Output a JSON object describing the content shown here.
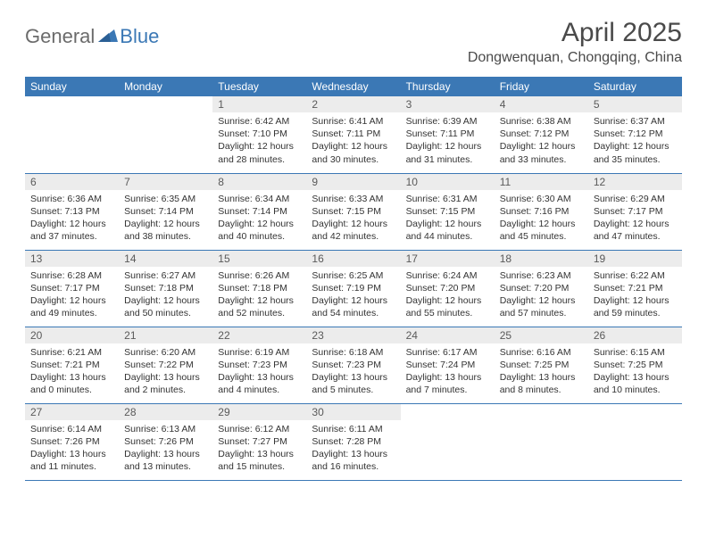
{
  "logo": {
    "general": "General",
    "blue": "Blue"
  },
  "title": "April 2025",
  "location": "Dongwenquan, Chongqing, China",
  "colors": {
    "header_bg": "#3b78b5",
    "header_text": "#ffffff",
    "daynum_bg": "#ececec",
    "daynum_text": "#5a5a5a",
    "text": "#333333",
    "logo_gray": "#6b6b6b",
    "logo_blue": "#3b78b5",
    "cell_border": "#3b78b5"
  },
  "dayNames": [
    "Sunday",
    "Monday",
    "Tuesday",
    "Wednesday",
    "Thursday",
    "Friday",
    "Saturday"
  ],
  "weeks": [
    [
      null,
      null,
      {
        "n": "1",
        "sr": "6:42 AM",
        "ss": "7:10 PM",
        "dl": "12 hours and 28 minutes."
      },
      {
        "n": "2",
        "sr": "6:41 AM",
        "ss": "7:11 PM",
        "dl": "12 hours and 30 minutes."
      },
      {
        "n": "3",
        "sr": "6:39 AM",
        "ss": "7:11 PM",
        "dl": "12 hours and 31 minutes."
      },
      {
        "n": "4",
        "sr": "6:38 AM",
        "ss": "7:12 PM",
        "dl": "12 hours and 33 minutes."
      },
      {
        "n": "5",
        "sr": "6:37 AM",
        "ss": "7:12 PM",
        "dl": "12 hours and 35 minutes."
      }
    ],
    [
      {
        "n": "6",
        "sr": "6:36 AM",
        "ss": "7:13 PM",
        "dl": "12 hours and 37 minutes."
      },
      {
        "n": "7",
        "sr": "6:35 AM",
        "ss": "7:14 PM",
        "dl": "12 hours and 38 minutes."
      },
      {
        "n": "8",
        "sr": "6:34 AM",
        "ss": "7:14 PM",
        "dl": "12 hours and 40 minutes."
      },
      {
        "n": "9",
        "sr": "6:33 AM",
        "ss": "7:15 PM",
        "dl": "12 hours and 42 minutes."
      },
      {
        "n": "10",
        "sr": "6:31 AM",
        "ss": "7:15 PM",
        "dl": "12 hours and 44 minutes."
      },
      {
        "n": "11",
        "sr": "6:30 AM",
        "ss": "7:16 PM",
        "dl": "12 hours and 45 minutes."
      },
      {
        "n": "12",
        "sr": "6:29 AM",
        "ss": "7:17 PM",
        "dl": "12 hours and 47 minutes."
      }
    ],
    [
      {
        "n": "13",
        "sr": "6:28 AM",
        "ss": "7:17 PM",
        "dl": "12 hours and 49 minutes."
      },
      {
        "n": "14",
        "sr": "6:27 AM",
        "ss": "7:18 PM",
        "dl": "12 hours and 50 minutes."
      },
      {
        "n": "15",
        "sr": "6:26 AM",
        "ss": "7:18 PM",
        "dl": "12 hours and 52 minutes."
      },
      {
        "n": "16",
        "sr": "6:25 AM",
        "ss": "7:19 PM",
        "dl": "12 hours and 54 minutes."
      },
      {
        "n": "17",
        "sr": "6:24 AM",
        "ss": "7:20 PM",
        "dl": "12 hours and 55 minutes."
      },
      {
        "n": "18",
        "sr": "6:23 AM",
        "ss": "7:20 PM",
        "dl": "12 hours and 57 minutes."
      },
      {
        "n": "19",
        "sr": "6:22 AM",
        "ss": "7:21 PM",
        "dl": "12 hours and 59 minutes."
      }
    ],
    [
      {
        "n": "20",
        "sr": "6:21 AM",
        "ss": "7:21 PM",
        "dl": "13 hours and 0 minutes."
      },
      {
        "n": "21",
        "sr": "6:20 AM",
        "ss": "7:22 PM",
        "dl": "13 hours and 2 minutes."
      },
      {
        "n": "22",
        "sr": "6:19 AM",
        "ss": "7:23 PM",
        "dl": "13 hours and 4 minutes."
      },
      {
        "n": "23",
        "sr": "6:18 AM",
        "ss": "7:23 PM",
        "dl": "13 hours and 5 minutes."
      },
      {
        "n": "24",
        "sr": "6:17 AM",
        "ss": "7:24 PM",
        "dl": "13 hours and 7 minutes."
      },
      {
        "n": "25",
        "sr": "6:16 AM",
        "ss": "7:25 PM",
        "dl": "13 hours and 8 minutes."
      },
      {
        "n": "26",
        "sr": "6:15 AM",
        "ss": "7:25 PM",
        "dl": "13 hours and 10 minutes."
      }
    ],
    [
      {
        "n": "27",
        "sr": "6:14 AM",
        "ss": "7:26 PM",
        "dl": "13 hours and 11 minutes."
      },
      {
        "n": "28",
        "sr": "6:13 AM",
        "ss": "7:26 PM",
        "dl": "13 hours and 13 minutes."
      },
      {
        "n": "29",
        "sr": "6:12 AM",
        "ss": "7:27 PM",
        "dl": "13 hours and 15 minutes."
      },
      {
        "n": "30",
        "sr": "6:11 AM",
        "ss": "7:28 PM",
        "dl": "13 hours and 16 minutes."
      },
      null,
      null,
      null
    ]
  ],
  "labels": {
    "sunrise": "Sunrise:",
    "sunset": "Sunset:",
    "daylight": "Daylight:"
  }
}
